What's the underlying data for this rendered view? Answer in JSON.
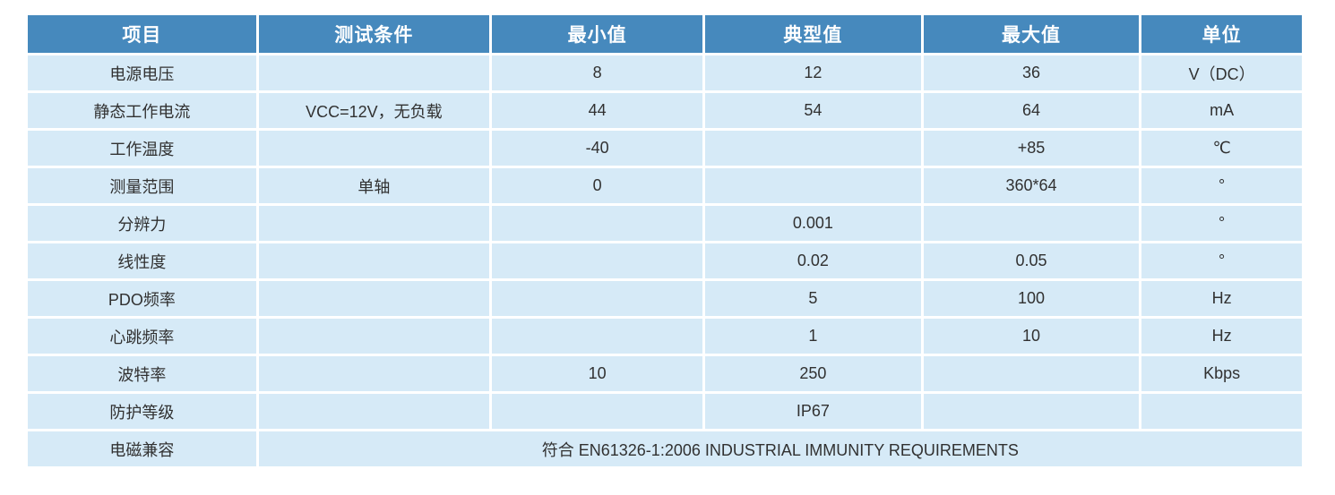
{
  "table": {
    "columns": [
      "项目",
      "测试条件",
      "最小值",
      "典型值",
      "最大值",
      "单位"
    ],
    "rows": [
      {
        "item": "电源电压",
        "condition": "",
        "min": "8",
        "typical": "12",
        "max": "36",
        "unit": "V（DC）"
      },
      {
        "item": "静态工作电流",
        "condition": "VCC=12V，无负载",
        "min": "44",
        "typical": "54",
        "max": "64",
        "unit": "mA"
      },
      {
        "item": "工作温度",
        "condition": "",
        "min": "-40",
        "typical": "",
        "max": "+85",
        "unit": "℃"
      },
      {
        "item": "测量范围",
        "condition": "单轴",
        "min": "0",
        "typical": "",
        "max": "360*64",
        "unit": "°"
      },
      {
        "item": "分辨力",
        "condition": "",
        "min": "",
        "typical": "0.001",
        "max": "",
        "unit": "°"
      },
      {
        "item": "线性度",
        "condition": "",
        "min": "",
        "typical": "0.02",
        "max": "0.05",
        "unit": "°"
      },
      {
        "item": "PDO频率",
        "condition": "",
        "min": "",
        "typical": "5",
        "max": "100",
        "unit": "Hz"
      },
      {
        "item": "心跳频率",
        "condition": "",
        "min": "",
        "typical": "1",
        "max": "10",
        "unit": "Hz"
      },
      {
        "item": "波特率",
        "condition": "",
        "min": "10",
        "typical": "250",
        "max": "",
        "unit": "Kbps"
      },
      {
        "item": "防护等级",
        "condition": "",
        "min": "",
        "typical": "IP67",
        "max": "",
        "unit": ""
      }
    ],
    "emc_row": {
      "item": "电磁兼容",
      "value": "符合 EN61326-1:2006 INDUSTRIAL IMMUNITY REQUIREMENTS"
    }
  },
  "colors": {
    "header_bg": "#4689bd",
    "header_text": "#ffffff",
    "row_bg": "#d6eaf7",
    "body_text": "#313131"
  }
}
